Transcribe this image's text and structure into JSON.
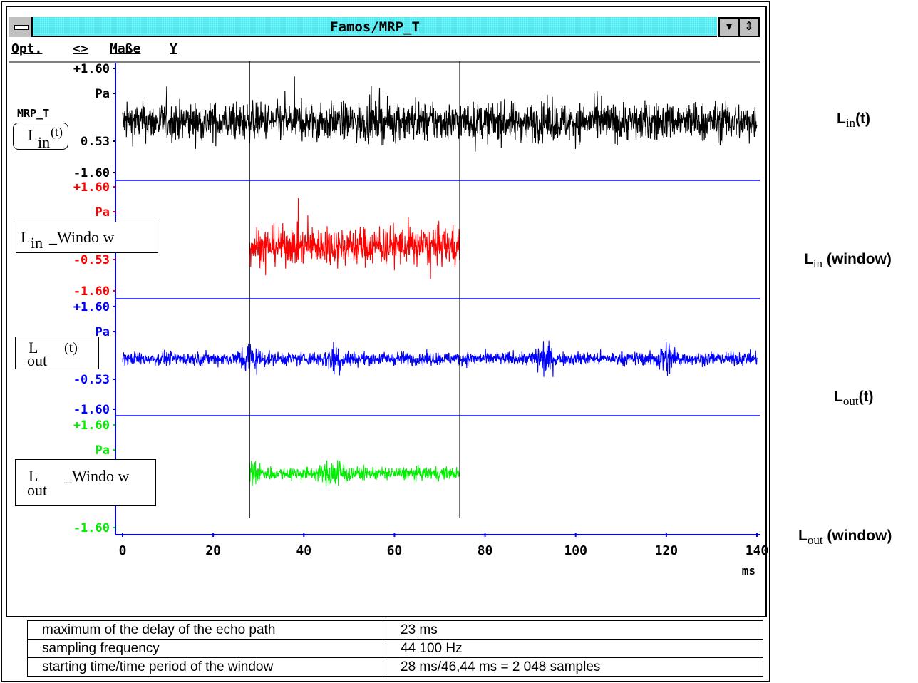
{
  "window": {
    "title": "Famos/MRP_T",
    "menu": [
      "Opt.",
      "<>",
      "Maße",
      "Y"
    ],
    "btn_down": "▾",
    "btn_updown": "⇕"
  },
  "chart_data": {
    "type": "line",
    "channel_label": "MRP_T",
    "unit": "Pa",
    "x_unit": "ms",
    "xlim": [
      0,
      140
    ],
    "x_ticks": [
      "0",
      "20",
      "40",
      "60",
      "80",
      "100",
      "120",
      "140"
    ],
    "cursors_ms": [
      28,
      74.44
    ],
    "panels": [
      {
        "name": "L_in(t)",
        "color": "#000000",
        "ticks": [
          "+1.60",
          "Pa",
          "0.53",
          "-1.60"
        ],
        "ylim": [
          -1.6,
          1.6
        ],
        "x_range": [
          0,
          140
        ],
        "amplitude": 0.55,
        "baseline": 0.53
      },
      {
        "name": "L_in_Window",
        "color": "#ff0000",
        "ticks": [
          "+1.60",
          "Pa",
          "-0.53",
          "-1.60"
        ],
        "ylim": [
          -1.6,
          1.6
        ],
        "x_range": [
          28,
          74.44
        ],
        "amplitude": 0.55,
        "baseline": 0.53
      },
      {
        "name": "L_out(t)",
        "color": "#0000ff",
        "ticks": [
          "+1.60",
          "Pa",
          "-0.53",
          "-1.60"
        ],
        "ylim": [
          -1.6,
          1.6
        ],
        "x_range": [
          0,
          140
        ],
        "amplitude": 0.35,
        "baseline": 0.53
      },
      {
        "name": "L_out_Window",
        "color": "#00ee00",
        "ticks": [
          "+1.60",
          "Pa",
          "-1.60"
        ],
        "ylim": [
          -1.6,
          1.6
        ],
        "x_range": [
          28,
          74.44
        ],
        "amplitude": 0.35,
        "baseline": 0.53
      }
    ]
  },
  "labels": {
    "lin_t": {
      "main": "L",
      "sub": "in",
      "tail": "(t)"
    },
    "lin_window": {
      "main": "L",
      "sub": "in",
      "tail": "_Windo w"
    },
    "lout_t": {
      "main": "L",
      "sub": "out",
      "tail": "(t)"
    },
    "lout_window": {
      "main": "L",
      "sub": "out",
      "tail": "_Windo w"
    }
  },
  "side_labels": {
    "a": {
      "main": "L",
      "sub": "in",
      "tail": "(t)"
    },
    "b": {
      "main": "L",
      "sub": "in",
      "tail": " (window)"
    },
    "c": {
      "main": "L",
      "sub": "out",
      "tail": "(t)"
    },
    "d": {
      "main": "L",
      "sub": "out",
      "tail": " (window)"
    }
  },
  "table": [
    [
      "maximum of the delay of the echo path",
      "23 ms"
    ],
    [
      "sampling frequency",
      "44 100 Hz"
    ],
    [
      "starting time/time period of the window",
      "28 ms/46,44 ms = 2 048 samples"
    ]
  ]
}
